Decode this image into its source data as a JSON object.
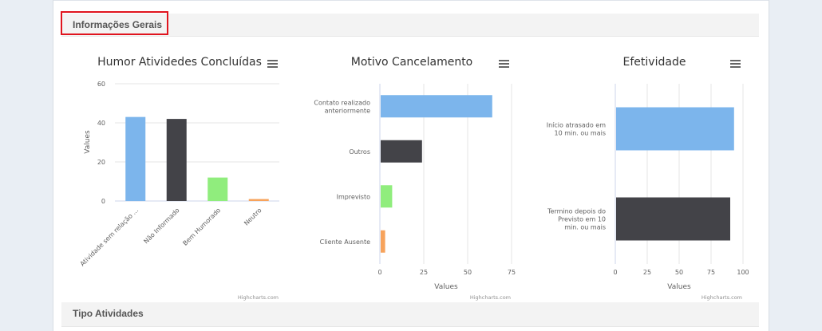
{
  "sections": {
    "general": "Informações Gerais",
    "types": "Tipo Atividades"
  },
  "colors": {
    "highlight": "#e0141e",
    "series": [
      "#7cb5ec",
      "#434348",
      "#90ed7d",
      "#f7a35c"
    ]
  },
  "icons": {
    "menu": "hamburger-menu-icon"
  },
  "chart_data": [
    {
      "type": "bar",
      "orientation": "vertical",
      "title": "Humor Atividedes Concluídas",
      "ylabel": "Values",
      "xlabel": "",
      "ylim": [
        0,
        60
      ],
      "yticks": [
        "0",
        "20",
        "40",
        "60"
      ],
      "categories": [
        "Atividade sem relação ...",
        "Não Informado",
        "Bem Humorado",
        "Neutro"
      ],
      "values": [
        43,
        42,
        12,
        1
      ],
      "grid": true,
      "credits": "Highcharts.com"
    },
    {
      "type": "bar",
      "orientation": "horizontal",
      "title": "Motivo Cancelamento",
      "xlabel": "Values",
      "ylabel": "",
      "xlim": [
        0,
        75
      ],
      "xticks": [
        "0",
        "25",
        "50",
        "75"
      ],
      "categories": [
        "Contato realizado anteriormente",
        "Outros",
        "Imprevisto",
        "Cliente Ausente"
      ],
      "values": [
        64,
        24,
        7,
        3
      ],
      "grid": true,
      "credits": "Highcharts.com"
    },
    {
      "type": "bar",
      "orientation": "horizontal",
      "title": "Efetividade",
      "xlabel": "Values",
      "ylabel": "",
      "xlim": [
        0,
        100
      ],
      "xticks": [
        "0",
        "25",
        "50",
        "75",
        "100"
      ],
      "categories": [
        "Início atrasado em 10 min. ou mais",
        "Termino depois do Previsto em 10 min. ou mais"
      ],
      "values": [
        93,
        90
      ],
      "grid": true,
      "credits": "Highcharts.com"
    }
  ]
}
